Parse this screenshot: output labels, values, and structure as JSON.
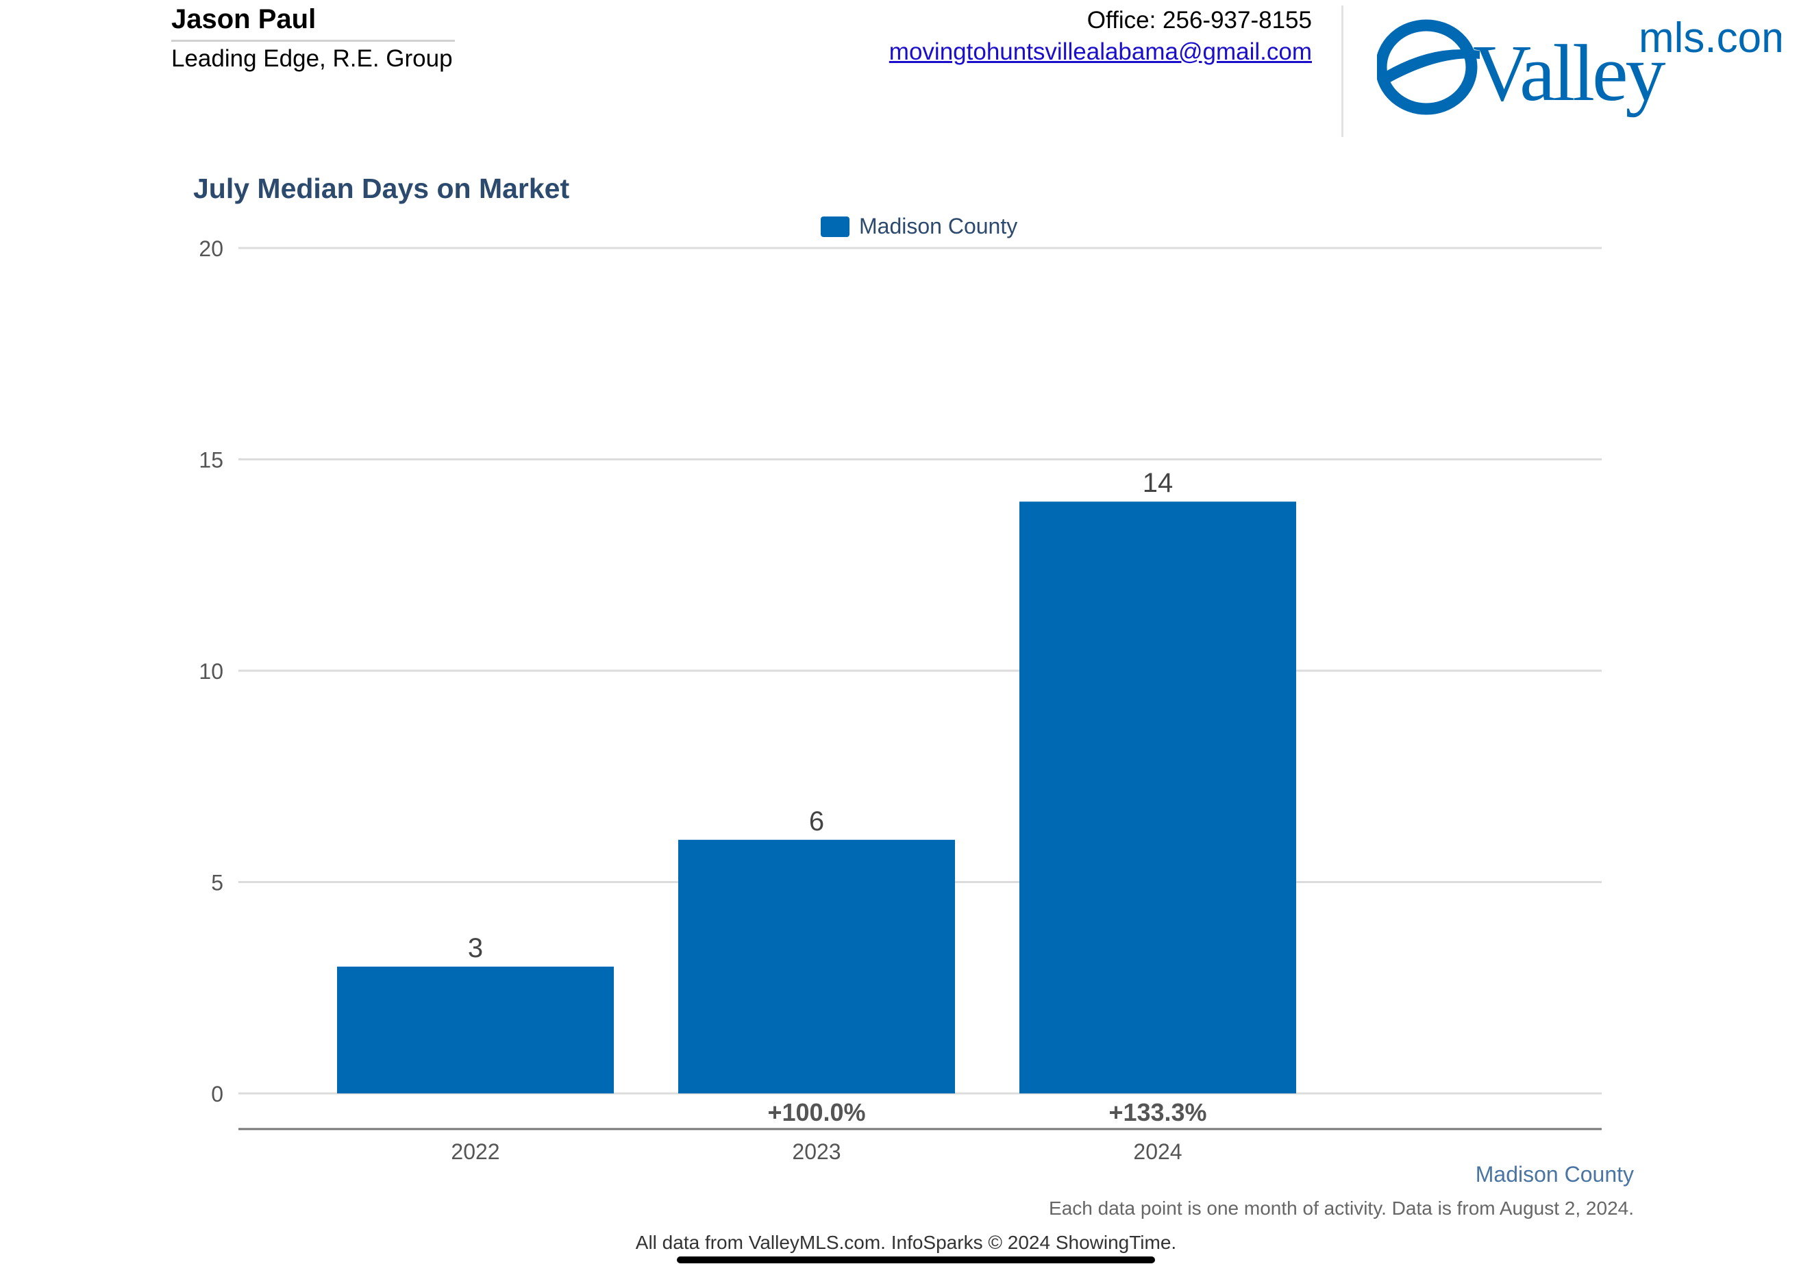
{
  "agent": {
    "name": "Jason Paul",
    "company": "Leading Edge, R.E. Group"
  },
  "contact": {
    "office": "Office: 256-937-8155",
    "email": "movingtohuntsvillealabama@gmail.com"
  },
  "logo": {
    "word": "Valley",
    "suffix": "mls.com",
    "color": "#0069b4"
  },
  "chart_data": {
    "type": "bar",
    "title": "July Median Days on Market",
    "xlabel": "",
    "ylabel": "",
    "categories": [
      "2022",
      "2023",
      "2024"
    ],
    "series": [
      {
        "name": "Madison County",
        "values": [
          3,
          6,
          14
        ],
        "color": "#0069b4"
      }
    ],
    "value_labels": [
      "3",
      "6",
      "14"
    ],
    "change_labels": [
      "",
      "+100.0%",
      "+133.3%"
    ],
    "ylim": [
      0,
      20
    ],
    "yticks": [
      0,
      5,
      10,
      15,
      20
    ],
    "grid": true,
    "legend": "top-center"
  },
  "footer": {
    "county": "Madison County",
    "note": "Each data point is one month of activity. Data is from August 2, 2024.",
    "source": "All data from ValleyMLS.com. InfoSparks © 2024 ShowingTime."
  }
}
